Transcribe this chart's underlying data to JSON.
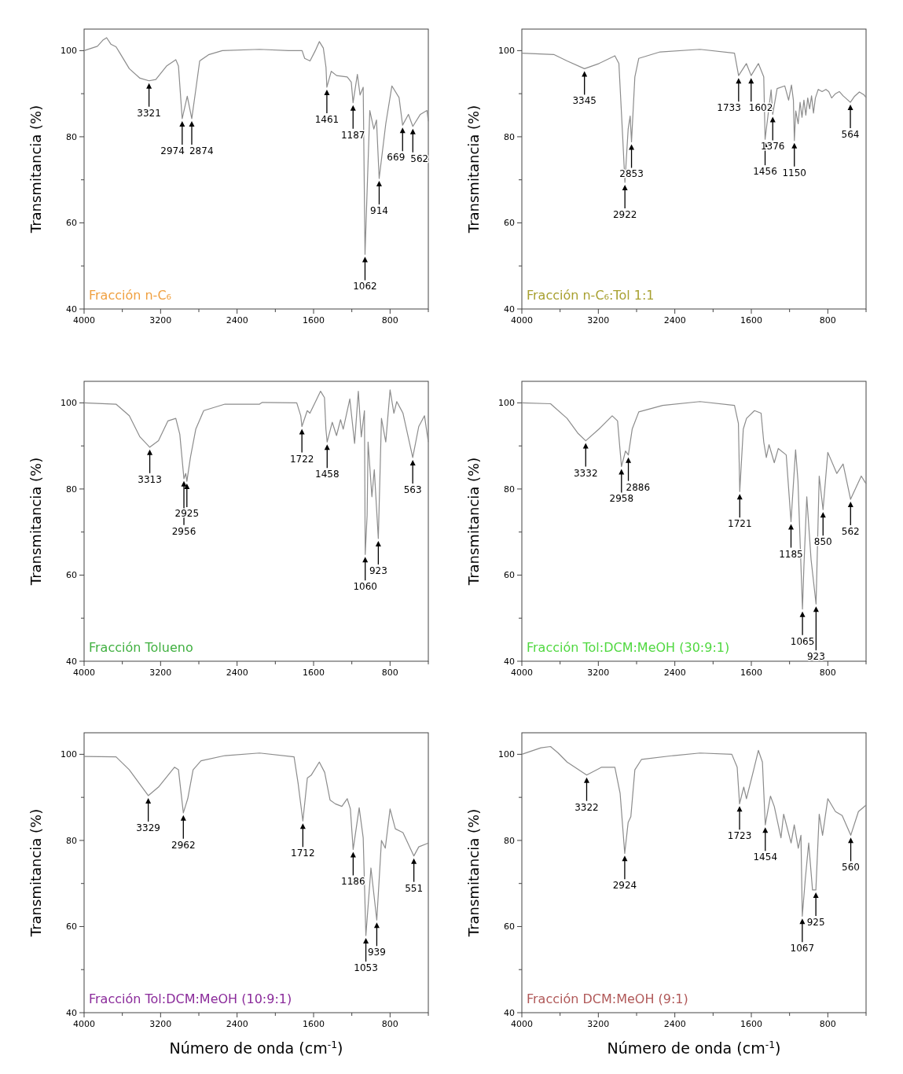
{
  "chart_data": [
    {
      "type": "line",
      "title": "Fracción n-C₆",
      "ylabel": "Transmitancia (%)",
      "xlim": [
        4000,
        400
      ],
      "ylim": [
        40,
        105
      ],
      "xticks": [
        4000,
        {
          "value": 3600,
          "label": null
        },
        3200,
        {
          "value": 2800,
          "label": null
        },
        2400,
        {
          "value": 2000,
          "label": null
        },
        1600,
        {
          "value": 1200,
          "label": null
        },
        800,
        {
          "value": 400,
          "label": null
        }
      ],
      "yticks": [
        40,
        {
          "value": 50,
          "label": null
        },
        60,
        {
          "value": 70,
          "label": null
        },
        80,
        {
          "value": 90,
          "label": null
        },
        100
      ],
      "series": [
        {
          "color": "#8c8c8c",
          "x": [
            4000,
            3861,
            3800,
            3764,
            3720,
            3666,
            3625,
            3527,
            3416,
            3321,
            3250,
            3138,
            3041,
            3013,
            2974,
            2921,
            2874,
            2832,
            2791,
            2693,
            2554,
            2165,
            1860,
            1720,
            1693,
            1637,
            1582,
            1540,
            1498,
            1470,
            1461,
            1415,
            1359,
            1248,
            1206,
            1187,
            1142,
            1114,
            1081,
            1062,
            1012,
            970,
            942,
            914,
            845,
            781,
            706,
            669,
            608,
            562,
            483,
            414,
            400
          ],
          "values": [
            100,
            101,
            102.5,
            103,
            101.5,
            100.9,
            99.4,
            95.8,
            93.6,
            93,
            93.3,
            96.4,
            97.9,
            96.4,
            84.2,
            89.4,
            84.2,
            90.9,
            97.6,
            99.1,
            100,
            100.3,
            100,
            100,
            98.2,
            97.6,
            100,
            102.1,
            100.6,
            96.1,
            91.5,
            95.2,
            94.2,
            93.9,
            92.7,
            87.9,
            94.5,
            89.7,
            91.5,
            52.7,
            86.1,
            81.8,
            83.9,
            70.3,
            83,
            91.8,
            89.1,
            82.7,
            85.2,
            82.4,
            85.2,
            86.1,
            83.6
          ]
        }
      ],
      "annotations": [
        {
          "text": "3321",
          "x": 3321,
          "y": 93
        },
        {
          "text": "2974",
          "x": 2974,
          "y": 84.2
        },
        {
          "text": "2874",
          "x": 2874,
          "y": 84.2
        },
        {
          "text": "1461",
          "x": 1461,
          "y": 91.5
        },
        {
          "text": "1187",
          "x": 1187,
          "y": 87.9
        },
        {
          "text": "1062",
          "x": 1062,
          "y": 52.7
        },
        {
          "text": "914",
          "x": 914,
          "y": 70.3
        },
        {
          "text": "669",
          "x": 669,
          "y": 82.7
        },
        {
          "text": "562",
          "x": 562,
          "y": 82.4
        }
      ]
    },
    {
      "type": "line",
      "title": "Fracción n-C₆:Tol 1:1",
      "ylabel": "Transmitancia (%)",
      "xlim": [
        4000,
        400
      ],
      "ylim": [
        40,
        105
      ],
      "xticks": [
        4000,
        {
          "value": 3600,
          "label": null
        },
        3200,
        {
          "value": 2800,
          "label": null
        },
        2400,
        {
          "value": 2000,
          "label": null
        },
        1600,
        {
          "value": 1200,
          "label": null
        },
        800,
        {
          "value": 400,
          "label": null
        }
      ],
      "yticks": [
        40,
        {
          "value": 50,
          "label": null
        },
        60,
        {
          "value": 70,
          "label": null
        },
        80,
        {
          "value": 90,
          "label": null
        },
        100
      ],
      "series": [
        {
          "color": "#8c8c8c",
          "x": [
            4000,
            3666,
            3527,
            3345,
            3194,
            3027,
            2985,
            2944,
            2922,
            2888,
            2867,
            2853,
            2818,
            2777,
            2554,
            2137,
            1776,
            1733,
            1652,
            1602,
            1526,
            1470,
            1456,
            1393,
            1376,
            1330,
            1250,
            1210,
            1180,
            1160,
            1150,
            1135,
            1110,
            1090,
            1070,
            1050,
            1030,
            1010,
            990,
            970,
            950,
            930,
            900,
            860,
            820,
            790,
            760,
            720,
            680,
            640,
            564,
            520,
            470,
            420,
            400
          ],
          "values": [
            99.4,
            99.1,
            97.6,
            95.8,
            97,
            98.8,
            97,
            79.4,
            69.4,
            81.8,
            84.8,
            78.8,
            93.9,
            98.2,
            99.7,
            100.3,
            99.4,
            94.2,
            97,
            94.2,
            97,
            93.9,
            79.4,
            90.9,
            85.2,
            91.2,
            91.8,
            88.5,
            92,
            88.5,
            79.1,
            86,
            83,
            88,
            84.5,
            88.5,
            85,
            89,
            86.5,
            89.5,
            85.5,
            89,
            91,
            90.5,
            91,
            90.5,
            89,
            90,
            90.5,
            89.5,
            88,
            89.4,
            90.4,
            89.7,
            89.1
          ]
        }
      ],
      "annotations": [
        {
          "text": "3345",
          "x": 3345,
          "y": 95.8
        },
        {
          "text": "2922",
          "x": 2922,
          "y": 69.4
        },
        {
          "text": "2853",
          "x": 2853,
          "y": 78.8
        },
        {
          "text": "1733",
          "x": 1733,
          "y": 94.2
        },
        {
          "text": "1602",
          "x": 1602,
          "y": 94.2
        },
        {
          "text": "1456",
          "x": 1456,
          "y": 79.4
        },
        {
          "text": "1376",
          "x": 1376,
          "y": 85.2
        },
        {
          "text": "1150",
          "x": 1150,
          "y": 79.1
        },
        {
          "text": "564",
          "x": 564,
          "y": 88
        }
      ]
    },
    {
      "type": "line",
      "title": "Fracción Tolueno",
      "ylabel": "Transmitancia (%)",
      "xlim": [
        4000,
        400
      ],
      "ylim": [
        40,
        105
      ],
      "xticks": [
        4000,
        {
          "value": 3600,
          "label": null
        },
        3200,
        {
          "value": 2800,
          "label": null
        },
        2400,
        {
          "value": 2000,
          "label": null
        },
        1600,
        {
          "value": 1200,
          "label": null
        },
        800,
        {
          "value": 400,
          "label": null
        }
      ],
      "yticks": [
        40,
        {
          "value": 50,
          "label": null
        },
        60,
        {
          "value": 70,
          "label": null
        },
        80,
        {
          "value": 90,
          "label": null
        },
        100
      ],
      "series": [
        {
          "color": "#8c8c8c",
          "x": [
            4000,
            3666,
            3527,
            3416,
            3313,
            3222,
            3124,
            3041,
            2999,
            2956,
            2937,
            2925,
            2888,
            2832,
            2749,
            2527,
            2165,
            2137,
            1776,
            1734,
            1722,
            1666,
            1638,
            1527,
            1486,
            1471,
            1458,
            1405,
            1360,
            1318,
            1290,
            1221,
            1171,
            1132,
            1101,
            1068,
            1060,
            1040,
            1030,
            990,
            965,
            923,
            890,
            845,
            800,
            760,
            730,
            665,
            563,
            500,
            440,
            400
          ],
          "values": [
            100,
            99.7,
            97,
            92.1,
            89.7,
            91.2,
            95.8,
            96.4,
            92.7,
            82.4,
            83.6,
            81.8,
            87.3,
            93.9,
            98.2,
            99.7,
            99.7,
            100.1,
            100,
            97,
            94.5,
            98.2,
            97.6,
            102.7,
            101.2,
            93.9,
            90.9,
            95.5,
            92.4,
            96.1,
            93.9,
            100.9,
            90.6,
            102.7,
            92.1,
            98.2,
            64.8,
            73.9,
            90.9,
            78.2,
            84.5,
            68.5,
            96.4,
            90.9,
            103,
            97.6,
            100.3,
            97.6,
            87.3,
            94.5,
            97,
            90.9
          ]
        }
      ],
      "annotations": [
        {
          "text": "3313",
          "x": 3313,
          "y": 89.7
        },
        {
          "text": "2956",
          "x": 2956,
          "y": 82.4
        },
        {
          "text": "2925",
          "x": 2925,
          "y": 81.8
        },
        {
          "text": "1722",
          "x": 1722,
          "y": 94.5
        },
        {
          "text": "1458",
          "x": 1458,
          "y": 90.9
        },
        {
          "text": "1060",
          "x": 1060,
          "y": 64.8
        },
        {
          "text": "923",
          "x": 923,
          "y": 68.5
        },
        {
          "text": "563",
          "x": 563,
          "y": 87.3
        }
      ]
    },
    {
      "type": "line",
      "title": "Fracción Tol:DCM:MeOH (30:9:1)",
      "ylabel": "Transmitancia (%)",
      "xlim": [
        4000,
        400
      ],
      "ylim": [
        40,
        105
      ],
      "xticks": [
        4000,
        {
          "value": 3600,
          "label": null
        },
        3200,
        {
          "value": 2800,
          "label": null
        },
        2400,
        {
          "value": 2000,
          "label": null
        },
        1600,
        {
          "value": 1200,
          "label": null
        },
        800,
        {
          "value": 400,
          "label": null
        }
      ],
      "yticks": [
        40,
        {
          "value": 50,
          "label": null
        },
        60,
        {
          "value": 70,
          "label": null
        },
        80,
        {
          "value": 90,
          "label": null
        },
        100
      ],
      "series": [
        {
          "color": "#8c8c8c",
          "x": [
            4000,
            3700,
            3527,
            3416,
            3332,
            3194,
            3055,
            2999,
            2958,
            2916,
            2886,
            2846,
            2777,
            2527,
            2137,
            1776,
            1735,
            1721,
            1684,
            1650,
            1567,
            1498,
            1470,
            1443,
            1415,
            1360,
            1318,
            1235,
            1185,
            1137,
            1112,
            1065,
            1050,
            1020,
            975,
            923,
            890,
            850,
            800,
            706,
            640,
            562,
            450,
            400
          ],
          "values": [
            100,
            99.8,
            96.4,
            93,
            91.2,
            93.9,
            97,
            95.8,
            85.2,
            88.8,
            87.9,
            93.9,
            97.9,
            99.4,
            100.3,
            99.4,
            95.2,
            79.4,
            93.9,
            96.4,
            98.2,
            97.6,
            90.9,
            87.3,
            90.3,
            86.1,
            89.4,
            87.9,
            72.4,
            89.1,
            81.8,
            52.1,
            62,
            78.2,
            63.6,
            53.3,
            83,
            75.2,
            88.5,
            83.6,
            85.8,
            77.6,
            83,
            81.2
          ]
        }
      ],
      "annotations": [
        {
          "text": "3332",
          "x": 3332,
          "y": 91.2
        },
        {
          "text": "2958",
          "x": 2958,
          "y": 85.2
        },
        {
          "text": "2886",
          "x": 2886,
          "y": 87.9
        },
        {
          "text": "1721",
          "x": 1721,
          "y": 79.4
        },
        {
          "text": "1185",
          "x": 1185,
          "y": 72.4
        },
        {
          "text": "1065",
          "x": 1065,
          "y": 52.1
        },
        {
          "text": "923",
          "x": 923,
          "y": 53.3
        },
        {
          "text": "850",
          "x": 850,
          "y": 75.2
        },
        {
          "text": "562",
          "x": 562,
          "y": 77.6
        }
      ]
    },
    {
      "type": "line",
      "title": "Fracción Tol:DCM:MeOH (10:9:1)",
      "ylabel": "Transmitancia (%)",
      "xlabel": "Número de onda (cm$^{-1}$)",
      "xlim": [
        4000,
        400
      ],
      "ylim": [
        40,
        105
      ],
      "xticks": [
        4000,
        {
          "value": 3600,
          "label": null
        },
        3200,
        {
          "value": 2800,
          "label": null
        },
        2400,
        {
          "value": 2000,
          "label": null
        },
        1600,
        {
          "value": 1200,
          "label": null
        },
        800,
        {
          "value": 400,
          "label": null
        }
      ],
      "yticks": [
        40,
        {
          "value": 50,
          "label": null
        },
        60,
        {
          "value": 70,
          "label": null
        },
        80,
        {
          "value": 90,
          "label": null
        },
        100
      ],
      "series": [
        {
          "color": "#8c8c8c",
          "x": [
            4000,
            3666,
            3527,
            3329,
            3222,
            3055,
            3013,
            2962,
            2916,
            2860,
            2777,
            2527,
            2165,
            1804,
            1762,
            1712,
            1665,
            1623,
            1540,
            1484,
            1428,
            1373,
            1304,
            1248,
            1215,
            1186,
            1123,
            1081,
            1053,
            1000,
            939,
            890,
            850,
            800,
            745,
            665,
            551,
            500,
            400
          ],
          "values": [
            99.5,
            99.4,
            96.4,
            90.4,
            92.4,
            97,
            96.4,
            86.4,
            89.7,
            96.4,
            98.5,
            99.7,
            100.3,
            99.4,
            93.3,
            84.5,
            94.5,
            95.2,
            98.2,
            95.8,
            89.4,
            88.5,
            87.9,
            89.7,
            87.3,
            77.9,
            87.6,
            80.6,
            57.9,
            73.6,
            61.5,
            80,
            78.2,
            87.3,
            82.7,
            81.8,
            76.4,
            78.5,
            79.4
          ]
        }
      ],
      "annotations": [
        {
          "text": "3329",
          "x": 3329,
          "y": 90.4
        },
        {
          "text": "2962",
          "x": 2962,
          "y": 86.4
        },
        {
          "text": "1712",
          "x": 1712,
          "y": 84.5
        },
        {
          "text": "1186",
          "x": 1186,
          "y": 77.9
        },
        {
          "text": "1053",
          "x": 1053,
          "y": 57.9
        },
        {
          "text": "939",
          "x": 939,
          "y": 61.5
        },
        {
          "text": "551",
          "x": 551,
          "y": 76.4
        }
      ]
    },
    {
      "type": "line",
      "title": "Fracción DCM:MeOH (9:1)",
      "ylabel": "Transmitancia (%)",
      "xlabel": "Número de onda (cm$^{-1}$)",
      "xlim": [
        4000,
        400
      ],
      "ylim": [
        40,
        105
      ],
      "xticks": [
        4000,
        {
          "value": 3600,
          "label": null
        },
        3200,
        {
          "value": 2800,
          "label": null
        },
        2400,
        {
          "value": 2000,
          "label": null
        },
        1600,
        {
          "value": 1200,
          "label": null
        },
        800,
        {
          "value": 400,
          "label": null
        }
      ],
      "yticks": [
        40,
        {
          "value": 50,
          "label": null
        },
        60,
        {
          "value": 70,
          "label": null
        },
        80,
        {
          "value": 90,
          "label": null
        },
        100
      ],
      "series": [
        {
          "color": "#8c8c8c",
          "x": [
            4000,
            3800,
            3700,
            3620,
            3527,
            3322,
            3166,
            3027,
            2972,
            2924,
            2888,
            2860,
            2818,
            2749,
            2416,
            2137,
            1804,
            1748,
            1723,
            1679,
            1651,
            1582,
            1526,
            1484,
            1454,
            1400,
            1360,
            1290,
            1262,
            1184,
            1151,
            1109,
            1081,
            1067,
            1036,
            1000,
            960,
            925,
            890,
            855,
            800,
            720,
            650,
            560,
            480,
            400
          ],
          "values": [
            100,
            101.5,
            101.8,
            100.3,
            98.2,
            95.2,
            97,
            97,
            90.9,
            77,
            84.2,
            85.5,
            96.4,
            98.8,
            99.7,
            100.3,
            100,
            97,
            88.5,
            92.4,
            89.7,
            95.8,
            100.9,
            98.2,
            83.6,
            90.3,
            87.9,
            80.6,
            86.1,
            79.4,
            83.6,
            78.2,
            81.2,
            62.4,
            70.9,
            79.4,
            68.5,
            68.5,
            86.1,
            81.2,
            89.7,
            86.7,
            85.8,
            81.2,
            86.7,
            88.2
          ]
        }
      ],
      "annotations": [
        {
          "text": "3322",
          "x": 3322,
          "y": 95.2
        },
        {
          "text": "2924",
          "x": 2924,
          "y": 77
        },
        {
          "text": "1723",
          "x": 1723,
          "y": 88.5
        },
        {
          "text": "1454",
          "x": 1454,
          "y": 83.6
        },
        {
          "text": "1067",
          "x": 1067,
          "y": 62.4
        },
        {
          "text": "925",
          "x": 925,
          "y": 68.5
        },
        {
          "text": "560",
          "x": 560,
          "y": 81.2
        }
      ]
    }
  ]
}
